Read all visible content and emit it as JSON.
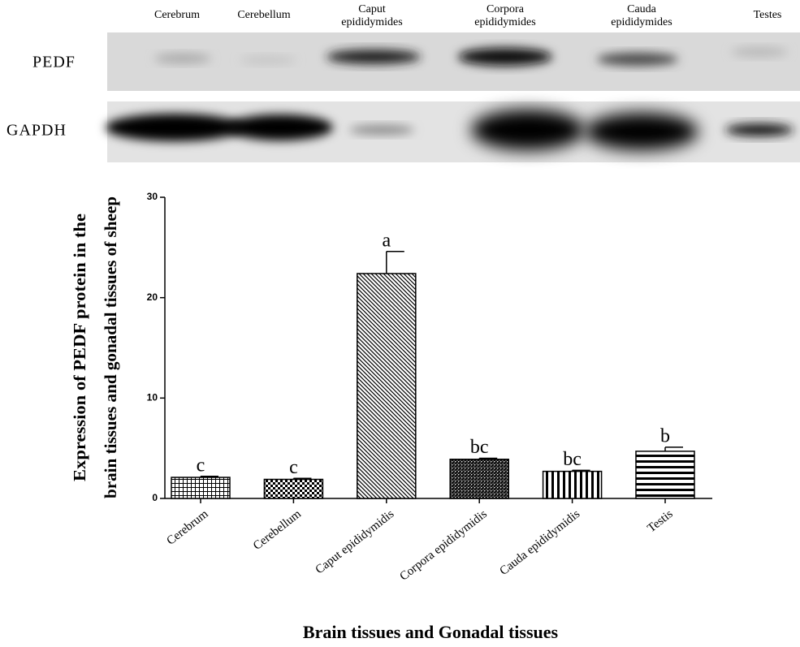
{
  "blot": {
    "rows": [
      "PEDF",
      "GAPDH"
    ],
    "lanes": [
      [
        "Cerebrum"
      ],
      [
        "Cerebellum"
      ],
      [
        "Caput",
        "epididymides"
      ],
      [
        "Corpora",
        "epididymides"
      ],
      [
        "Cauda",
        "epididymides"
      ],
      [
        "Testes"
      ]
    ]
  },
  "chart_data": {
    "type": "bar",
    "ylabel": [
      "Expression of PEDF protein in the",
      "brain tissues and gonadal tissues of sheep"
    ],
    "xlabel": "Brain tissues and Gonadal tissues",
    "categories": [
      "Cerebrum",
      "Cerebellum",
      "Caput epididymidis",
      "Corpora epididymidis",
      "Cauda epididymidis",
      "Testis"
    ],
    "values": [
      2.1,
      1.9,
      22.4,
      3.9,
      2.7,
      4.7
    ],
    "errors": [
      0.1,
      0.1,
      2.2,
      0.1,
      0.1,
      0.4
    ],
    "significance": [
      "c",
      "c",
      "a",
      "bc",
      "bc",
      "b"
    ],
    "color": "#000000",
    "ylim": [
      0,
      30
    ],
    "yticks": [
      0,
      10,
      20,
      30
    ],
    "grid": false
  }
}
